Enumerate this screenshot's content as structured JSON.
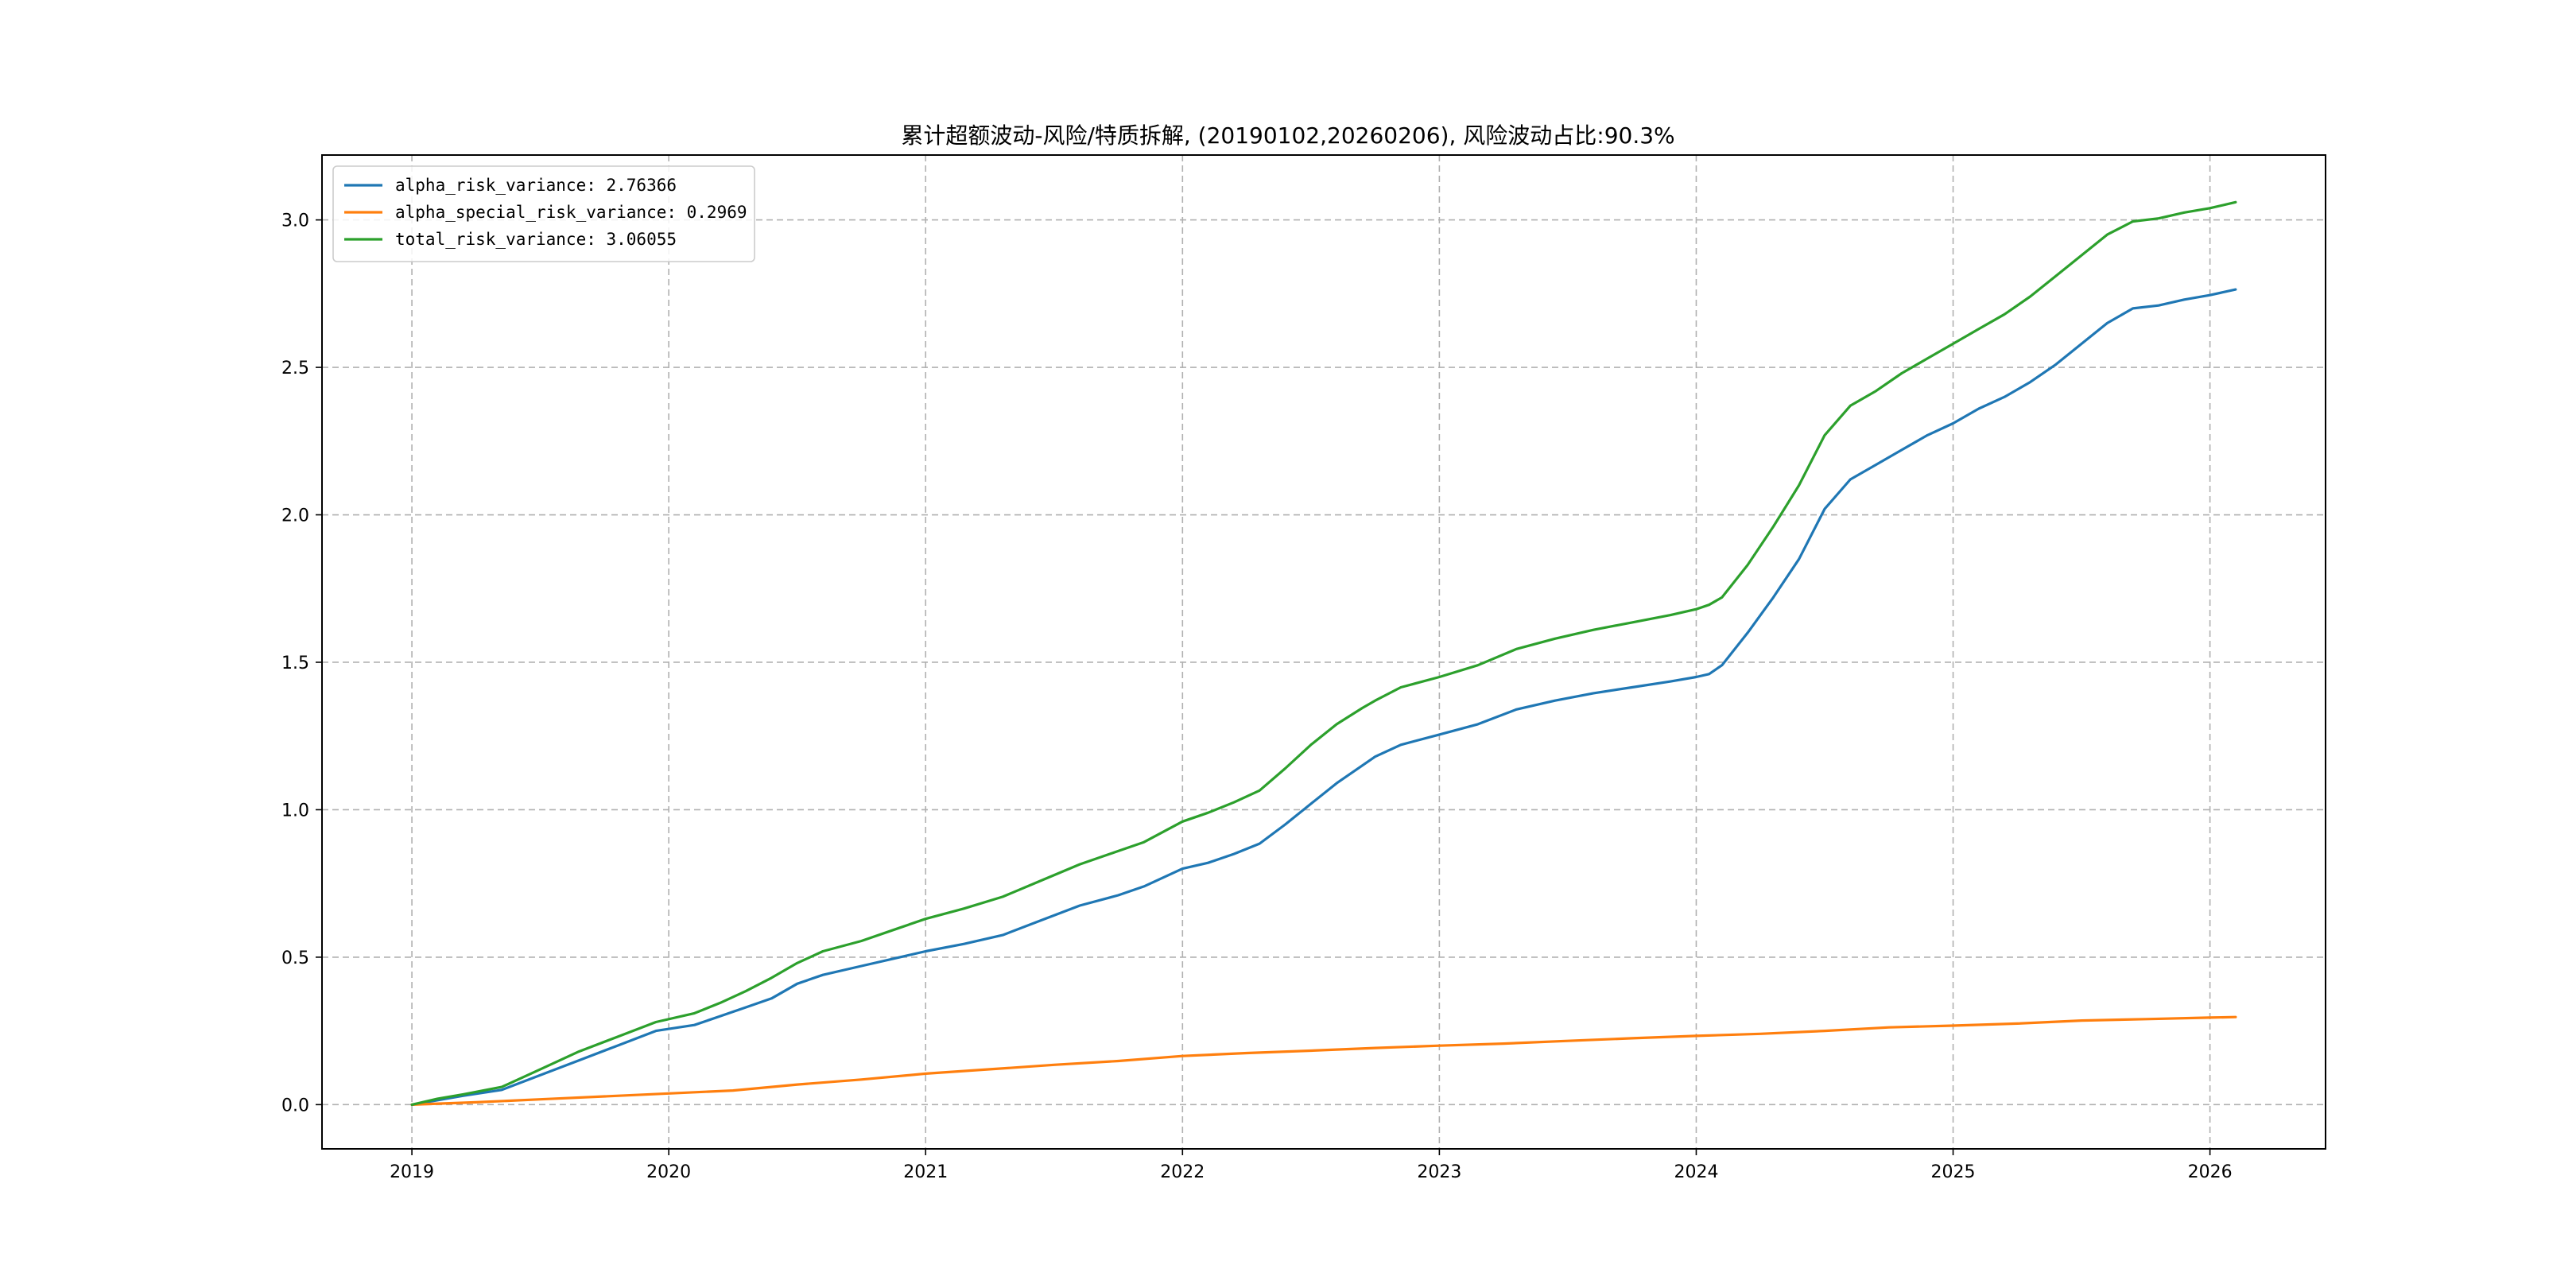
{
  "chart_data": {
    "type": "line",
    "title": "累计超额波动-风险/特质拆解, (20190102,20260206), 风险波动占比:90.3%",
    "xlabel": "",
    "ylabel": "",
    "xlim": [
      2018.65,
      2026.45
    ],
    "ylim": [
      -0.15,
      3.22
    ],
    "xticks": [
      2019,
      2020,
      2021,
      2022,
      2023,
      2024,
      2025,
      2026
    ],
    "xtick_labels": [
      "2019",
      "2020",
      "2021",
      "2022",
      "2023",
      "2024",
      "2025",
      "2026"
    ],
    "yticks": [
      0.0,
      0.5,
      1.0,
      1.5,
      2.0,
      2.5,
      3.0
    ],
    "ytick_labels": [
      "0.0",
      "0.5",
      "1.0",
      "1.5",
      "2.0",
      "2.5",
      "3.0"
    ],
    "grid": true,
    "grid_style": "dashed",
    "legend_position": "top-left",
    "series": [
      {
        "name": "alpha_risk_variance",
        "legend_label": "alpha_risk_variance: 2.76366",
        "color": "#1f77b4",
        "x": [
          2019.0,
          2019.1,
          2019.2,
          2019.35,
          2019.5,
          2019.65,
          2019.8,
          2019.95,
          2020.1,
          2020.2,
          2020.3,
          2020.4,
          2020.5,
          2020.6,
          2020.75,
          2020.9,
          2021.0,
          2021.15,
          2021.3,
          2021.45,
          2021.6,
          2021.75,
          2021.85,
          2022.0,
          2022.1,
          2022.2,
          2022.3,
          2022.4,
          2022.5,
          2022.6,
          2022.7,
          2022.75,
          2022.85,
          2023.0,
          2023.15,
          2023.3,
          2023.45,
          2023.6,
          2023.75,
          2023.9,
          2024.0,
          2024.05,
          2024.1,
          2024.2,
          2024.3,
          2024.4,
          2024.5,
          2024.6,
          2024.7,
          2024.8,
          2024.9,
          2025.0,
          2025.1,
          2025.2,
          2025.3,
          2025.4,
          2025.5,
          2025.6,
          2025.7,
          2025.8,
          2025.9,
          2026.0,
          2026.1
        ],
        "values": [
          0.0,
          0.015,
          0.03,
          0.05,
          0.1,
          0.15,
          0.2,
          0.25,
          0.27,
          0.3,
          0.33,
          0.36,
          0.41,
          0.44,
          0.47,
          0.5,
          0.52,
          0.545,
          0.575,
          0.625,
          0.675,
          0.71,
          0.74,
          0.8,
          0.82,
          0.85,
          0.885,
          0.95,
          1.02,
          1.09,
          1.15,
          1.18,
          1.22,
          1.255,
          1.29,
          1.34,
          1.37,
          1.395,
          1.415,
          1.435,
          1.45,
          1.46,
          1.49,
          1.6,
          1.72,
          1.85,
          2.02,
          2.12,
          2.17,
          2.22,
          2.27,
          2.31,
          2.36,
          2.4,
          2.45,
          2.51,
          2.58,
          2.65,
          2.7,
          2.71,
          2.73,
          2.745,
          2.764
        ]
      },
      {
        "name": "alpha_special_risk_variance",
        "legend_label": "alpha_special_risk_variance: 0.2969",
        "color": "#ff7f0e",
        "x": [
          2019.0,
          2019.25,
          2019.5,
          2019.75,
          2020.0,
          2020.25,
          2020.5,
          2020.75,
          2021.0,
          2021.25,
          2021.5,
          2021.75,
          2022.0,
          2022.25,
          2022.5,
          2022.75,
          2023.0,
          2023.25,
          2023.5,
          2023.75,
          2024.0,
          2024.25,
          2024.5,
          2024.75,
          2025.0,
          2025.25,
          2025.5,
          2025.75,
          2026.0,
          2026.1
        ],
        "values": [
          0.0,
          0.008,
          0.018,
          0.028,
          0.038,
          0.048,
          0.068,
          0.085,
          0.105,
          0.12,
          0.135,
          0.148,
          0.165,
          0.175,
          0.183,
          0.192,
          0.2,
          0.207,
          0.216,
          0.225,
          0.233,
          0.24,
          0.25,
          0.262,
          0.268,
          0.275,
          0.285,
          0.29,
          0.295,
          0.297
        ]
      },
      {
        "name": "total_risk_variance",
        "legend_label": "total_risk_variance: 3.06055",
        "color": "#2ca02c",
        "x": [
          2019.0,
          2019.1,
          2019.2,
          2019.35,
          2019.5,
          2019.65,
          2019.8,
          2019.95,
          2020.1,
          2020.2,
          2020.3,
          2020.4,
          2020.5,
          2020.6,
          2020.75,
          2020.9,
          2021.0,
          2021.15,
          2021.3,
          2021.45,
          2021.6,
          2021.75,
          2021.85,
          2022.0,
          2022.1,
          2022.2,
          2022.3,
          2022.4,
          2022.5,
          2022.6,
          2022.7,
          2022.75,
          2022.85,
          2023.0,
          2023.15,
          2023.3,
          2023.45,
          2023.6,
          2023.75,
          2023.9,
          2024.0,
          2024.05,
          2024.1,
          2024.2,
          2024.3,
          2024.4,
          2024.5,
          2024.6,
          2024.7,
          2024.8,
          2024.9,
          2025.0,
          2025.1,
          2025.2,
          2025.3,
          2025.4,
          2025.5,
          2025.6,
          2025.7,
          2025.8,
          2025.9,
          2026.0,
          2026.1
        ],
        "values": [
          0.0,
          0.02,
          0.035,
          0.06,
          0.12,
          0.18,
          0.23,
          0.28,
          0.31,
          0.345,
          0.385,
          0.43,
          0.48,
          0.52,
          0.555,
          0.6,
          0.63,
          0.665,
          0.705,
          0.76,
          0.815,
          0.86,
          0.89,
          0.96,
          0.99,
          1.025,
          1.065,
          1.14,
          1.22,
          1.29,
          1.345,
          1.37,
          1.415,
          1.45,
          1.49,
          1.545,
          1.58,
          1.61,
          1.635,
          1.66,
          1.68,
          1.695,
          1.72,
          1.83,
          1.96,
          2.1,
          2.27,
          2.37,
          2.42,
          2.48,
          2.53,
          2.58,
          2.63,
          2.68,
          2.74,
          2.81,
          2.88,
          2.95,
          2.995,
          3.005,
          3.025,
          3.04,
          3.06
        ]
      }
    ]
  }
}
